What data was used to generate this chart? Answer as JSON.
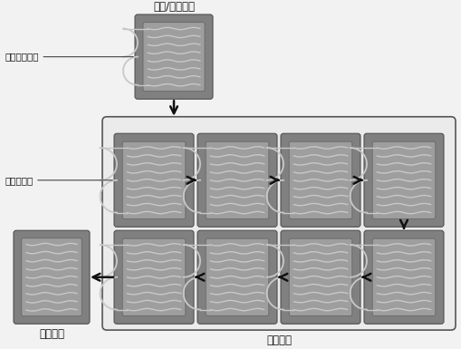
{
  "title_top": "预热/进料模块",
  "label_reactant": "反应前体进料",
  "label_oxygen": "氧气进料口",
  "label_output": "出料模块",
  "label_reaction": "反应模块",
  "bg_color": "#f2f2f2",
  "module_outer_color": "#808080",
  "module_inner_color": "#9e9e9e",
  "channel_color": "#c8c8c8",
  "box_bg": "#eeeeee",
  "box_edge": "#555555",
  "arrow_color": "#111111",
  "font_size": 8.5,
  "fig_w": 5.09,
  "fig_h": 3.85,
  "dpi": 100
}
